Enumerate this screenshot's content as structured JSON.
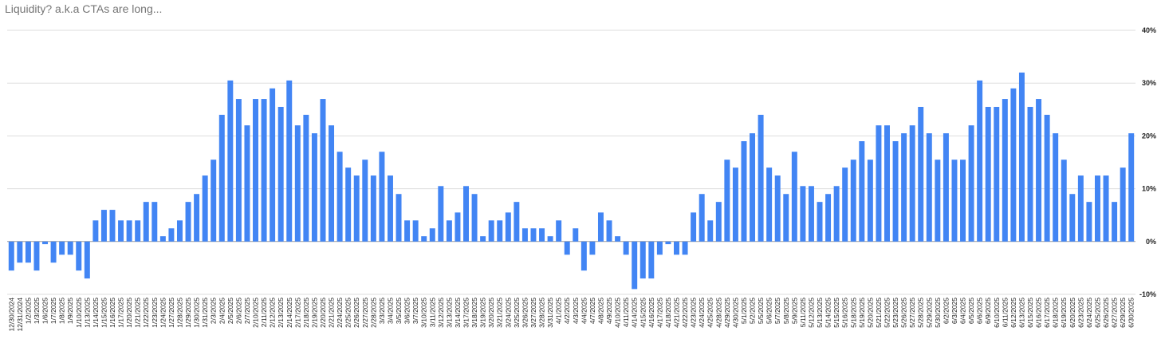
{
  "chart_data": {
    "type": "bar",
    "title": "Liquidity? a.k.a CTAs are long...",
    "categories": [
      "12/30/2024",
      "12/31/2024",
      "1/2/2025",
      "1/3/2025",
      "1/6/2025",
      "1/7/2025",
      "1/8/2025",
      "1/9/2025",
      "1/10/2025",
      "1/13/2025",
      "1/14/2025",
      "1/15/2025",
      "1/16/2025",
      "1/17/2025",
      "1/20/2025",
      "1/21/2025",
      "1/22/2025",
      "1/23/2025",
      "1/24/2025",
      "1/27/2025",
      "1/28/2025",
      "1/29/2025",
      "1/30/2025",
      "1/31/2025",
      "2/3/2025",
      "2/4/2025",
      "2/5/2025",
      "2/6/2025",
      "2/7/2025",
      "2/10/2025",
      "2/11/2025",
      "2/12/2025",
      "2/13/2025",
      "2/14/2025",
      "2/17/2025",
      "2/18/2025",
      "2/19/2025",
      "2/20/2025",
      "2/21/2025",
      "2/24/2025",
      "2/25/2025",
      "2/26/2025",
      "2/27/2025",
      "2/28/2025",
      "3/3/2025",
      "3/4/2025",
      "3/5/2025",
      "3/6/2025",
      "3/7/2025",
      "3/10/2025",
      "3/11/2025",
      "3/12/2025",
      "3/13/2025",
      "3/14/2025",
      "3/17/2025",
      "3/18/2025",
      "3/19/2025",
      "3/20/2025",
      "3/21/2025",
      "3/24/2025",
      "3/25/2025",
      "3/26/2025",
      "3/27/2025",
      "3/28/2025",
      "3/31/2025",
      "4/1/2025",
      "4/2/2025",
      "4/3/2025",
      "4/4/2025",
      "4/7/2025",
      "4/8/2025",
      "4/9/2025",
      "4/10/2025",
      "4/11/2025",
      "4/14/2025",
      "4/15/2025",
      "4/16/2025",
      "4/17/2025",
      "4/18/2025",
      "4/21/2025",
      "4/22/2025",
      "4/23/2025",
      "4/24/2025",
      "4/25/2025",
      "4/28/2025",
      "4/29/2025",
      "4/30/2025",
      "5/1/2025",
      "5/2/2025",
      "5/5/2025",
      "5/6/2025",
      "5/7/2025",
      "5/8/2025",
      "5/9/2025",
      "5/11/2025",
      "5/12/2025",
      "5/13/2025",
      "5/14/2025",
      "5/15/2025",
      "5/16/2025",
      "5/18/2025",
      "5/19/2025",
      "5/20/2025",
      "5/21/2025",
      "5/22/2025",
      "5/23/2025",
      "5/26/2025",
      "5/27/2025",
      "5/28/2025",
      "5/29/2025",
      "5/30/2025",
      "6/2/2025",
      "6/3/2025",
      "6/4/2025",
      "6/5/2025",
      "6/6/2025",
      "6/9/2025",
      "6/10/2025",
      "6/11/2025",
      "6/12/2025",
      "6/13/2025",
      "6/15/2025",
      "6/16/2025",
      "6/17/2025",
      "6/18/2025",
      "6/19/2025",
      "6/20/2025",
      "6/23/2025",
      "6/24/2025",
      "6/25/2025",
      "6/26/2025",
      "6/27/2025",
      "6/29/2025",
      "6/30/2025"
    ],
    "values": [
      -5.5,
      -4,
      -4,
      -5.5,
      -0.5,
      -4,
      -2.5,
      -2.5,
      -5.5,
      -7,
      4,
      6,
      6,
      4,
      4,
      4,
      7.5,
      7.5,
      1,
      2.5,
      4,
      7.5,
      9,
      12.5,
      15.5,
      24,
      30.5,
      27,
      22,
      27,
      27,
      29,
      25.5,
      30.5,
      22,
      24,
      20.5,
      27,
      22,
      17,
      14,
      12.5,
      15.5,
      12.5,
      17,
      12.5,
      9,
      4,
      4,
      1,
      2.5,
      10.5,
      4,
      5.5,
      10.5,
      9,
      1,
      4,
      4,
      5.5,
      7.5,
      2.5,
      2.5,
      2.5,
      1,
      4,
      -2.5,
      2.5,
      -5.5,
      -2.5,
      5.5,
      4,
      1,
      -2.5,
      -9,
      -7,
      -7,
      -2.5,
      -0.5,
      -2.5,
      -2.5,
      5.5,
      9,
      4,
      7.5,
      15.5,
      14,
      19,
      20.5,
      24,
      14,
      12.5,
      9,
      17,
      10.5,
      10.5,
      7.5,
      9,
      10.5,
      14,
      15.5,
      19,
      15.5,
      22,
      22,
      19,
      20.5,
      22,
      25.5,
      20.5,
      15.5,
      20.5,
      15.5,
      15.5,
      22,
      30.5,
      25.5,
      25.5,
      27,
      29,
      32,
      25.5,
      27,
      24,
      20.5,
      15.5,
      9,
      12.5,
      7.5,
      12.5,
      12.5,
      7.5,
      14,
      20.5
    ],
    "color": "#4285f4",
    "ylim": [
      -10,
      40
    ],
    "yticks": [
      {
        "value": -10,
        "label": "-10%"
      },
      {
        "value": 0,
        "label": "0%"
      },
      {
        "value": 10,
        "label": "10%"
      },
      {
        "value": 20,
        "label": "20%"
      },
      {
        "value": 30,
        "label": "30%"
      },
      {
        "value": 40,
        "label": "40%"
      }
    ],
    "grid": true
  }
}
